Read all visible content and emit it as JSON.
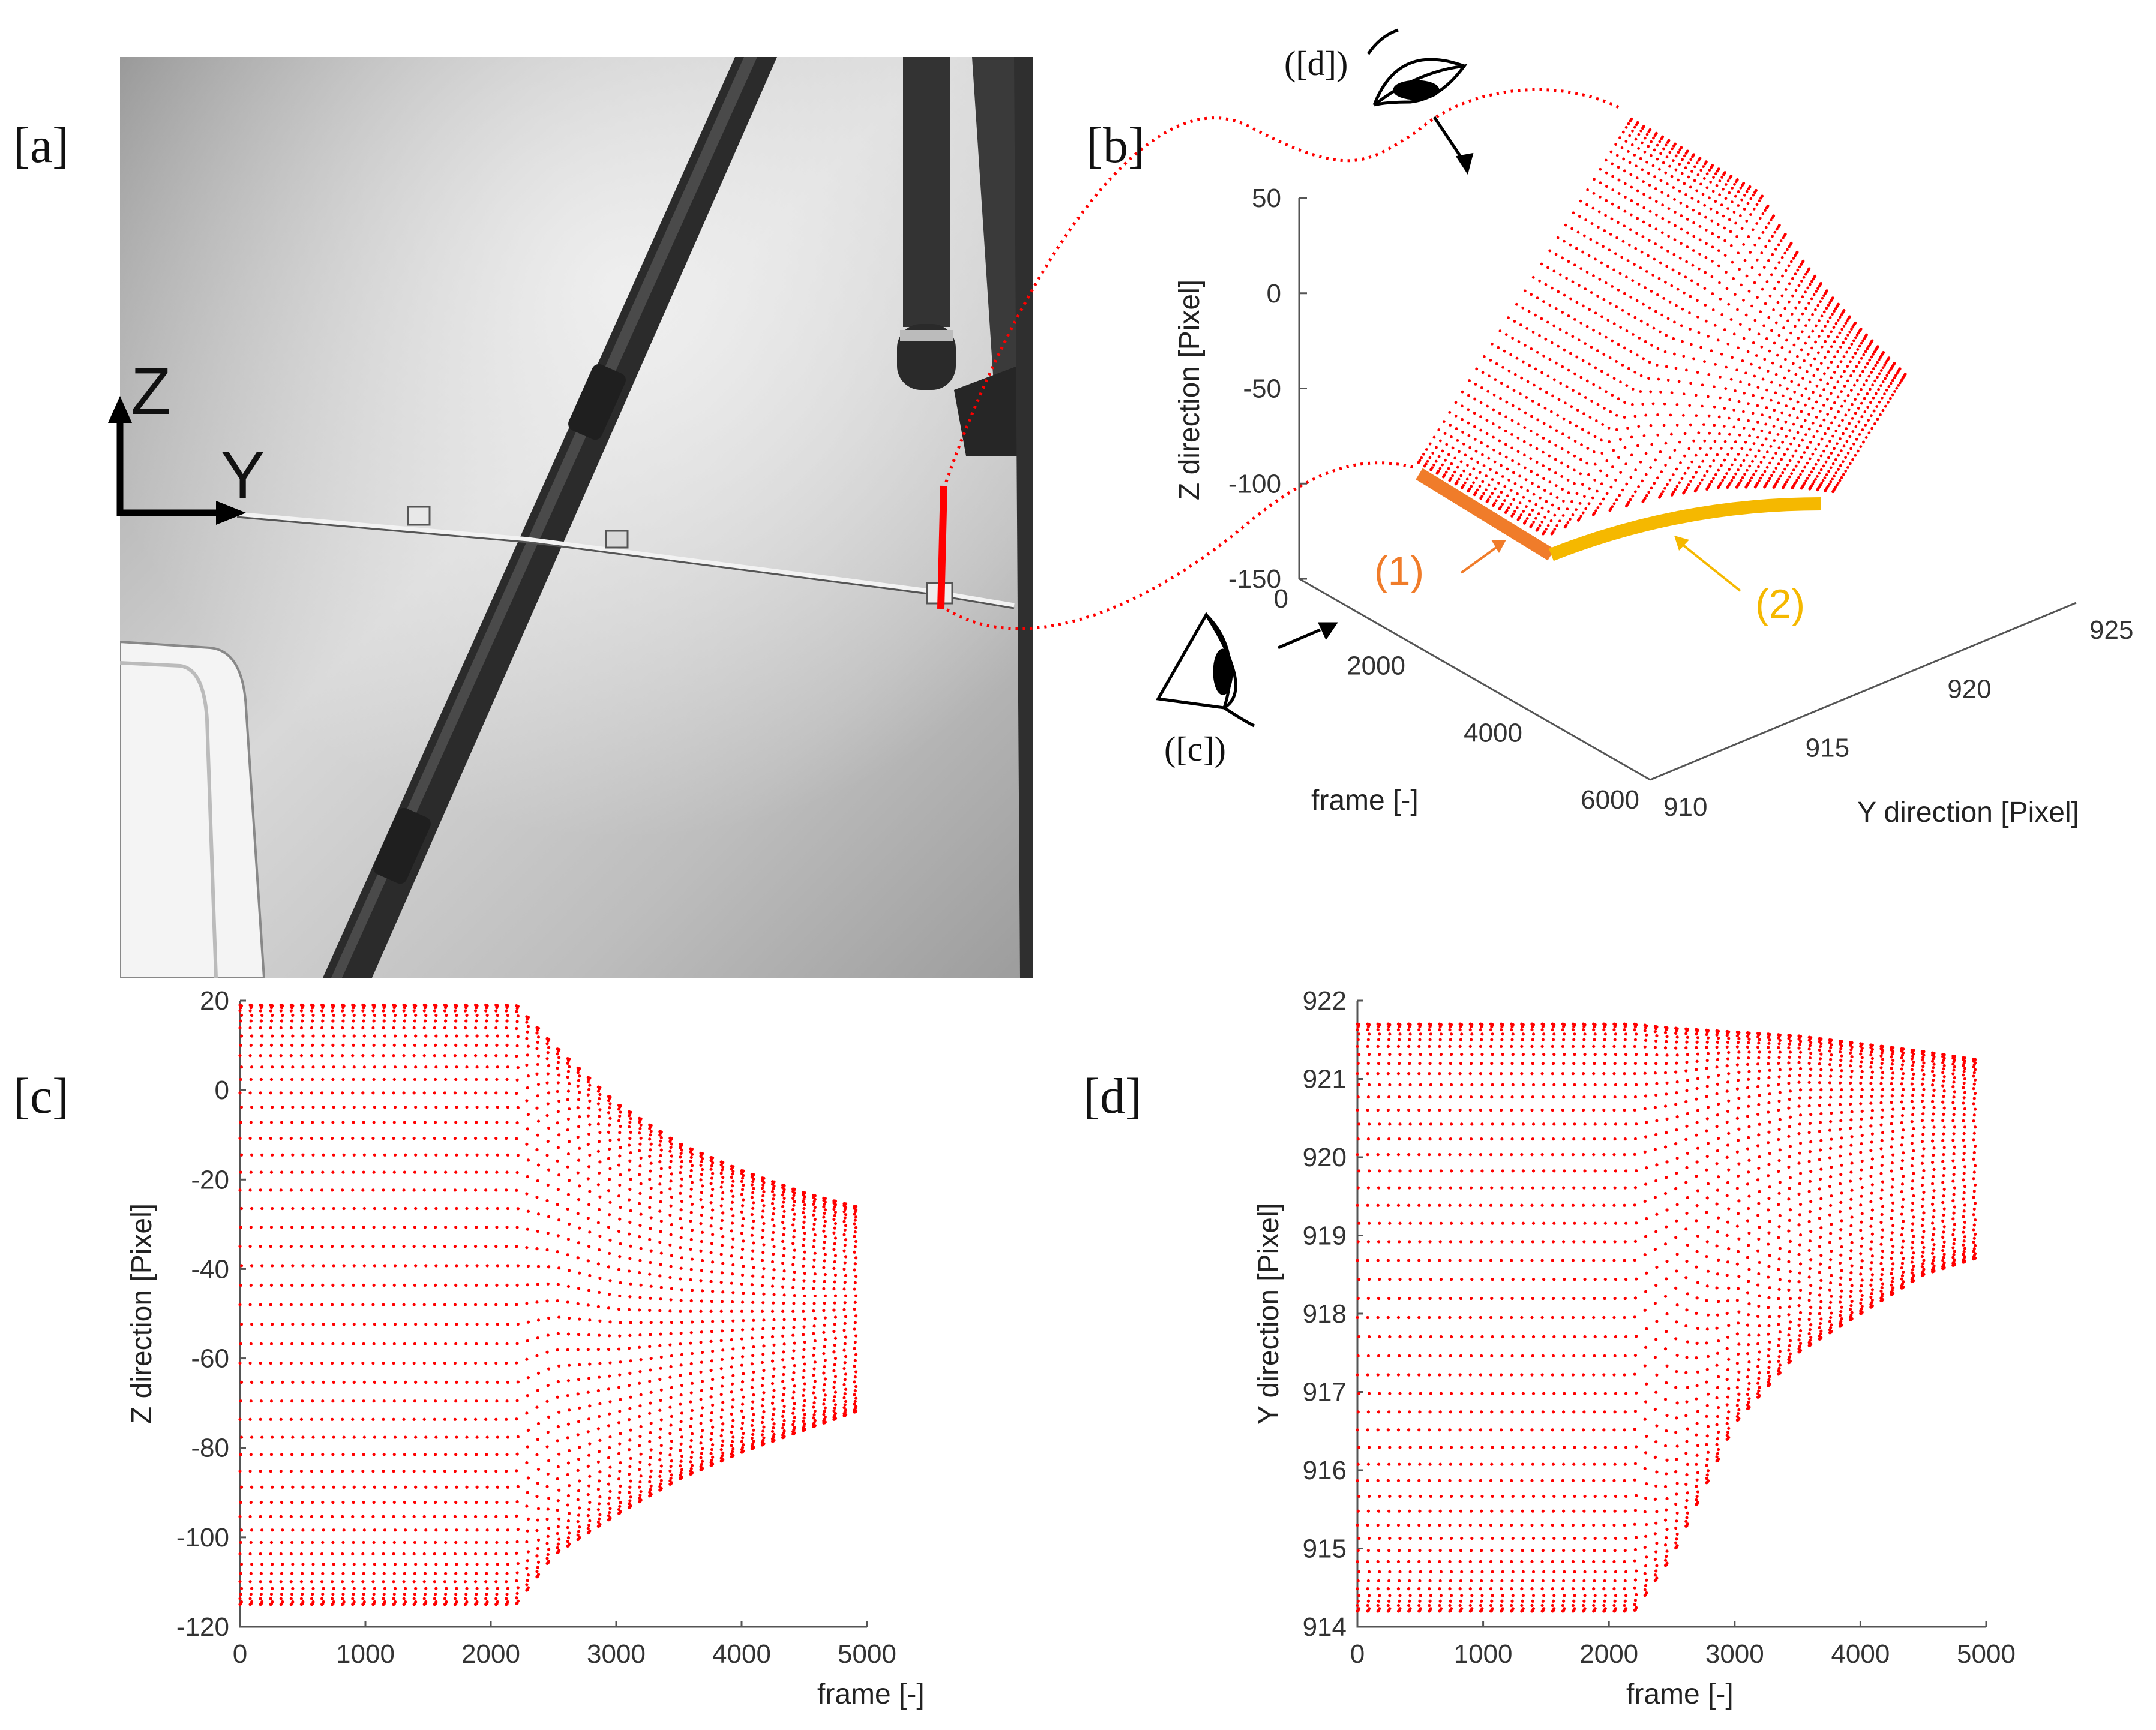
{
  "panels": {
    "a": {
      "label": "[a]",
      "axis_z": "Z",
      "axis_y": "Y"
    },
    "b": {
      "label": "[b]",
      "view_c": "([c])",
      "view_d": "([d])",
      "annot_1": "(1)",
      "annot_2": "(2)"
    },
    "c": {
      "label": "[c]"
    },
    "d": {
      "label": "[d]"
    }
  },
  "colors": {
    "points": "#ff0000",
    "annot_1": "#f07c2a",
    "annot_2": "#f5b800",
    "axis": "#444444"
  },
  "chart_data": [
    {
      "id": "b",
      "type": "scatter",
      "projection": "3d",
      "title": "",
      "xlabel": "frame [-]",
      "ylabel": "Y direction [Pixel]",
      "zlabel": "Z direction [Pixel]",
      "xlim": [
        0,
        6000
      ],
      "ylim": [
        910,
        925
      ],
      "zlim": [
        -150,
        50
      ],
      "xticks": [
        "0",
        "2000",
        "4000",
        "6000"
      ],
      "yticks": [
        "910",
        "915",
        "920",
        "925"
      ],
      "zticks": [
        "50",
        "0",
        "-50",
        "-100",
        "-150"
      ],
      "note": "cloud of displacement points: Z from -115 to 20, Y from 914 to 922, frames 0 to 4900"
    },
    {
      "id": "c",
      "type": "scatter",
      "title": "",
      "xlabel": "frame [-]",
      "ylabel": "Z direction [Pixel]",
      "xlim": [
        0,
        5000
      ],
      "ylim": [
        -120,
        20
      ],
      "xticks": [
        "0",
        "1000",
        "2000",
        "3000",
        "4000",
        "5000"
      ],
      "yticks": [
        "20",
        "0",
        "-20",
        "-40",
        "-60",
        "-80",
        "-100",
        "-120"
      ],
      "envelope": {
        "frames": [
          0,
          2200,
          2500,
          3000,
          3500,
          4000,
          4500,
          4900
        ],
        "upper": [
          19,
          19,
          10,
          -3,
          -12,
          -18,
          -23,
          -26
        ],
        "lower": [
          -115,
          -115,
          -104,
          -95,
          -87,
          -81,
          -76,
          -72
        ]
      }
    },
    {
      "id": "d",
      "type": "scatter",
      "title": "",
      "xlabel": "frame [-]",
      "ylabel": "Y direction [Pixel]",
      "xlim": [
        0,
        5000
      ],
      "ylim": [
        914,
        922
      ],
      "xticks": [
        "0",
        "1000",
        "2000",
        "3000",
        "4000",
        "5000"
      ],
      "yticks": [
        "922",
        "921",
        "920",
        "919",
        "918",
        "917",
        "916",
        "915",
        "914"
      ],
      "envelope": {
        "frames": [
          0,
          2200,
          2500,
          3000,
          3500,
          4000,
          4500,
          4900
        ],
        "upper": [
          921.7,
          921.7,
          921.65,
          921.6,
          921.55,
          921.45,
          921.35,
          921.25
        ],
        "lower": [
          914.2,
          914.2,
          914.9,
          916.6,
          917.5,
          918.0,
          918.5,
          918.7
        ]
      }
    }
  ]
}
